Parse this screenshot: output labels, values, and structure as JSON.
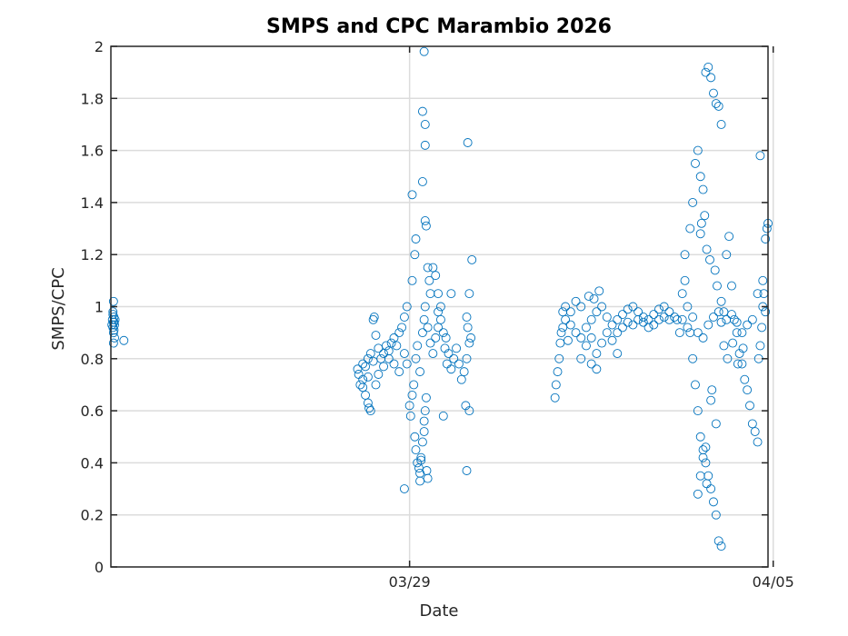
{
  "chart_data": {
    "type": "scatter",
    "title": "SMPS and CPC Marambio 2026",
    "xlabel": "Date",
    "ylabel": "SMPS/CPC",
    "xlim": [
      -5.75,
      6.9
    ],
    "ylim": [
      0,
      2
    ],
    "x_unit": "days relative to 03/29 00:00",
    "x_ticks": [
      {
        "value": 0,
        "label": "03/29"
      },
      {
        "value": 7,
        "label": "04/05"
      }
    ],
    "y_ticks": [
      0,
      0.2,
      0.4,
      0.6,
      0.8,
      1,
      1.2,
      1.4,
      1.6,
      1.8,
      2
    ],
    "y_tick_labels": [
      "0",
      "0.2",
      "0.4",
      "0.6",
      "0.8",
      "1",
      "1.2",
      "1.4",
      "1.6",
      "1.8",
      "2"
    ],
    "grid": true,
    "marker": "open-circle",
    "color": "#0072BD",
    "series": [
      {
        "name": "SMPS/CPC",
        "points": [
          [
            -5.7,
            1.02
          ],
          [
            -5.71,
            0.98
          ],
          [
            -5.69,
            0.96
          ],
          [
            -5.72,
            0.95
          ],
          [
            -5.7,
            0.94
          ],
          [
            -5.68,
            0.93
          ],
          [
            -5.71,
            0.92
          ],
          [
            -5.69,
            0.91
          ],
          [
            -5.7,
            0.9
          ],
          [
            -5.68,
            0.88
          ],
          [
            -5.7,
            0.86
          ],
          [
            -5.71,
            0.97
          ],
          [
            -5.69,
            0.94
          ],
          [
            -5.73,
            0.93
          ],
          [
            -5.67,
            0.95
          ],
          [
            -5.5,
            0.87
          ],
          [
            -1.0,
            0.76
          ],
          [
            -0.98,
            0.74
          ],
          [
            -0.95,
            0.7
          ],
          [
            -0.9,
            0.72
          ],
          [
            -0.85,
            0.66
          ],
          [
            -0.8,
            0.63
          ],
          [
            -0.78,
            0.61
          ],
          [
            -0.75,
            0.6
          ],
          [
            -0.9,
            0.78
          ],
          [
            -0.85,
            0.77
          ],
          [
            -0.8,
            0.8
          ],
          [
            -0.75,
            0.82
          ],
          [
            -0.7,
            0.79
          ],
          [
            -0.7,
            0.95
          ],
          [
            -0.68,
            0.96
          ],
          [
            -0.65,
            0.89
          ],
          [
            -0.6,
            0.84
          ],
          [
            -0.55,
            0.8
          ],
          [
            -0.5,
            0.82
          ],
          [
            -0.45,
            0.85
          ],
          [
            -0.4,
            0.83
          ],
          [
            -0.35,
            0.86
          ],
          [
            -0.3,
            0.88
          ],
          [
            -0.25,
            0.85
          ],
          [
            -0.2,
            0.9
          ],
          [
            -0.15,
            0.92
          ],
          [
            -0.1,
            0.96
          ],
          [
            -0.05,
            1.0
          ],
          [
            -0.2,
            0.75
          ],
          [
            -0.3,
            0.78
          ],
          [
            -0.4,
            0.8
          ],
          [
            -0.5,
            0.77
          ],
          [
            -0.6,
            0.74
          ],
          [
            -0.65,
            0.7
          ],
          [
            -0.8,
            0.73
          ],
          [
            -0.9,
            0.69
          ],
          [
            -0.1,
            0.82
          ],
          [
            -0.05,
            0.78
          ],
          [
            -0.1,
            0.3
          ],
          [
            0.0,
            0.62
          ],
          [
            0.02,
            0.58
          ],
          [
            0.05,
            0.66
          ],
          [
            0.08,
            0.7
          ],
          [
            0.1,
            0.5
          ],
          [
            0.12,
            0.45
          ],
          [
            0.15,
            0.4
          ],
          [
            0.18,
            0.38
          ],
          [
            0.2,
            0.36
          ],
          [
            0.22,
            0.42
          ],
          [
            0.25,
            0.48
          ],
          [
            0.28,
            0.52
          ],
          [
            0.3,
            0.6
          ],
          [
            0.32,
            0.65
          ],
          [
            0.12,
            0.8
          ],
          [
            0.15,
            0.85
          ],
          [
            0.2,
            0.75
          ],
          [
            0.25,
            0.9
          ],
          [
            0.28,
            0.95
          ],
          [
            0.3,
            1.0
          ],
          [
            0.05,
            1.1
          ],
          [
            0.1,
            1.2
          ],
          [
            0.12,
            1.26
          ],
          [
            0.05,
            1.43
          ],
          [
            0.3,
            1.33
          ],
          [
            0.32,
            1.31
          ],
          [
            0.25,
            1.48
          ],
          [
            0.25,
            1.75
          ],
          [
            0.3,
            1.7
          ],
          [
            0.3,
            1.62
          ],
          [
            0.28,
            1.98
          ],
          [
            0.35,
            1.15
          ],
          [
            0.38,
            1.1
          ],
          [
            0.4,
            1.05
          ],
          [
            0.35,
            0.92
          ],
          [
            0.4,
            0.86
          ],
          [
            0.45,
            0.82
          ],
          [
            0.5,
            0.88
          ],
          [
            0.55,
            0.92
          ],
          [
            0.6,
            0.95
          ],
          [
            0.65,
            0.9
          ],
          [
            0.7,
            0.88
          ],
          [
            0.35,
            0.34
          ],
          [
            0.33,
            0.37
          ],
          [
            0.2,
            0.33
          ],
          [
            0.22,
            0.41
          ],
          [
            0.28,
            0.56
          ],
          [
            0.45,
            1.15
          ],
          [
            0.5,
            1.12
          ],
          [
            0.55,
            1.05
          ],
          [
            0.6,
            1.0
          ],
          [
            0.68,
            0.84
          ],
          [
            0.72,
            0.78
          ],
          [
            0.75,
            0.82
          ],
          [
            0.8,
            0.76
          ],
          [
            0.85,
            0.8
          ],
          [
            0.9,
            0.84
          ],
          [
            0.95,
            0.78
          ],
          [
            1.0,
            0.72
          ],
          [
            1.05,
            0.75
          ],
          [
            1.1,
            0.8
          ],
          [
            1.1,
            0.96
          ],
          [
            1.12,
            0.92
          ],
          [
            1.15,
            1.05
          ],
          [
            1.12,
            1.63
          ],
          [
            1.15,
            0.6
          ],
          [
            1.08,
            0.62
          ],
          [
            1.1,
            0.37
          ],
          [
            0.65,
            0.58
          ],
          [
            1.2,
            1.18
          ],
          [
            1.18,
            0.88
          ],
          [
            1.15,
            0.86
          ],
          [
            0.8,
            1.05
          ],
          [
            0.55,
            0.98
          ],
          [
            2.8,
            0.65
          ],
          [
            2.82,
            0.7
          ],
          [
            2.85,
            0.75
          ],
          [
            2.88,
            0.8
          ],
          [
            2.9,
            0.86
          ],
          [
            2.92,
            0.9
          ],
          [
            2.95,
            0.92
          ],
          [
            3.0,
            0.95
          ],
          [
            3.1,
            0.93
          ],
          [
            3.2,
            0.9
          ],
          [
            3.3,
            0.88
          ],
          [
            3.4,
            0.92
          ],
          [
            3.5,
            0.95
          ],
          [
            3.6,
            0.98
          ],
          [
            3.7,
            1.0
          ],
          [
            3.8,
            0.96
          ],
          [
            3.9,
            0.93
          ],
          [
            4.0,
            0.95
          ],
          [
            4.1,
            0.97
          ],
          [
            4.2,
            0.99
          ],
          [
            4.3,
            1.0
          ],
          [
            4.4,
            0.98
          ],
          [
            4.5,
            0.96
          ],
          [
            4.6,
            0.95
          ],
          [
            4.7,
            0.97
          ],
          [
            4.8,
            0.99
          ],
          [
            4.9,
            1.0
          ],
          [
            5.0,
            0.98
          ],
          [
            5.1,
            0.96
          ],
          [
            5.15,
            0.95
          ],
          [
            3.0,
            1.0
          ],
          [
            3.1,
            0.98
          ],
          [
            3.2,
            1.02
          ],
          [
            3.3,
            1.0
          ],
          [
            3.4,
            0.85
          ],
          [
            3.5,
            0.88
          ],
          [
            3.6,
            0.82
          ],
          [
            3.7,
            0.86
          ],
          [
            3.8,
            0.9
          ],
          [
            3.9,
            0.87
          ],
          [
            4.0,
            0.9
          ],
          [
            4.1,
            0.92
          ],
          [
            4.2,
            0.94
          ],
          [
            4.3,
            0.93
          ],
          [
            4.4,
            0.95
          ],
          [
            4.5,
            0.94
          ],
          [
            4.6,
            0.92
          ],
          [
            4.7,
            0.93
          ],
          [
            4.8,
            0.95
          ],
          [
            4.9,
            0.96
          ],
          [
            5.0,
            0.95
          ],
          [
            3.3,
            0.8
          ],
          [
            3.6,
            0.76
          ],
          [
            3.5,
            0.78
          ],
          [
            4.0,
            0.82
          ],
          [
            3.65,
            1.06
          ],
          [
            3.55,
            1.03
          ],
          [
            3.45,
            1.04
          ],
          [
            2.95,
            0.98
          ],
          [
            3.05,
            0.87
          ],
          [
            5.2,
            0.9
          ],
          [
            5.25,
            1.05
          ],
          [
            5.3,
            1.1
          ],
          [
            5.35,
            1.0
          ],
          [
            5.4,
            0.9
          ],
          [
            5.45,
            0.8
          ],
          [
            5.5,
            0.7
          ],
          [
            5.55,
            0.6
          ],
          [
            5.6,
            0.5
          ],
          [
            5.65,
            0.45
          ],
          [
            5.7,
            0.4
          ],
          [
            5.75,
            0.35
          ],
          [
            5.8,
            0.3
          ],
          [
            5.85,
            0.25
          ],
          [
            5.9,
            0.2
          ],
          [
            5.95,
            0.1
          ],
          [
            6.0,
            0.08
          ],
          [
            5.3,
            1.2
          ],
          [
            5.4,
            1.3
          ],
          [
            5.45,
            1.4
          ],
          [
            5.5,
            1.55
          ],
          [
            5.55,
            1.6
          ],
          [
            5.6,
            1.5
          ],
          [
            5.65,
            1.45
          ],
          [
            5.7,
            1.9
          ],
          [
            5.75,
            1.92
          ],
          [
            5.8,
            1.88
          ],
          [
            5.85,
            1.82
          ],
          [
            5.9,
            1.78
          ],
          [
            5.95,
            1.77
          ],
          [
            6.0,
            1.7
          ],
          [
            5.25,
            0.95
          ],
          [
            5.35,
            0.92
          ],
          [
            5.45,
            0.96
          ],
          [
            5.55,
            0.9
          ],
          [
            5.65,
            0.88
          ],
          [
            5.75,
            0.93
          ],
          [
            5.85,
            0.96
          ],
          [
            5.95,
            0.98
          ],
          [
            6.0,
            1.02
          ],
          [
            6.05,
            0.98
          ],
          [
            6.1,
            1.2
          ],
          [
            6.15,
            1.27
          ],
          [
            6.2,
            1.08
          ],
          [
            6.25,
            0.95
          ],
          [
            6.3,
            0.9
          ],
          [
            6.35,
            0.82
          ],
          [
            6.4,
            0.78
          ],
          [
            6.45,
            0.72
          ],
          [
            6.5,
            0.68
          ],
          [
            6.55,
            0.62
          ],
          [
            6.6,
            0.55
          ],
          [
            6.65,
            0.52
          ],
          [
            6.7,
            0.48
          ],
          [
            6.72,
            0.8
          ],
          [
            6.75,
            0.85
          ],
          [
            6.78,
            0.92
          ],
          [
            6.8,
            1.0
          ],
          [
            6.82,
            1.05
          ],
          [
            6.85,
            0.98
          ],
          [
            6.88,
            1.3
          ],
          [
            6.9,
            1.32
          ],
          [
            6.75,
            1.58
          ],
          [
            6.8,
            1.1
          ],
          [
            6.85,
            1.26
          ],
          [
            6.7,
            1.05
          ],
          [
            6.6,
            0.95
          ],
          [
            6.5,
            0.93
          ],
          [
            6.4,
            0.9
          ],
          [
            6.3,
            0.94
          ],
          [
            6.2,
            0.97
          ],
          [
            6.1,
            0.95
          ],
          [
            6.0,
            0.94
          ],
          [
            5.55,
            0.28
          ],
          [
            5.6,
            0.35
          ],
          [
            5.65,
            0.42
          ],
          [
            5.7,
            0.46
          ],
          [
            5.72,
            0.32
          ],
          [
            5.8,
            0.64
          ],
          [
            5.82,
            0.68
          ],
          [
            5.9,
            0.55
          ],
          [
            5.6,
            1.28
          ],
          [
            5.62,
            1.32
          ],
          [
            5.68,
            1.35
          ],
          [
            5.72,
            1.22
          ],
          [
            5.78,
            1.18
          ],
          [
            5.88,
            1.14
          ],
          [
            5.92,
            1.08
          ],
          [
            6.05,
            0.85
          ],
          [
            6.12,
            0.8
          ],
          [
            6.22,
            0.86
          ],
          [
            6.32,
            0.78
          ],
          [
            6.42,
            0.84
          ]
        ]
      }
    ]
  }
}
